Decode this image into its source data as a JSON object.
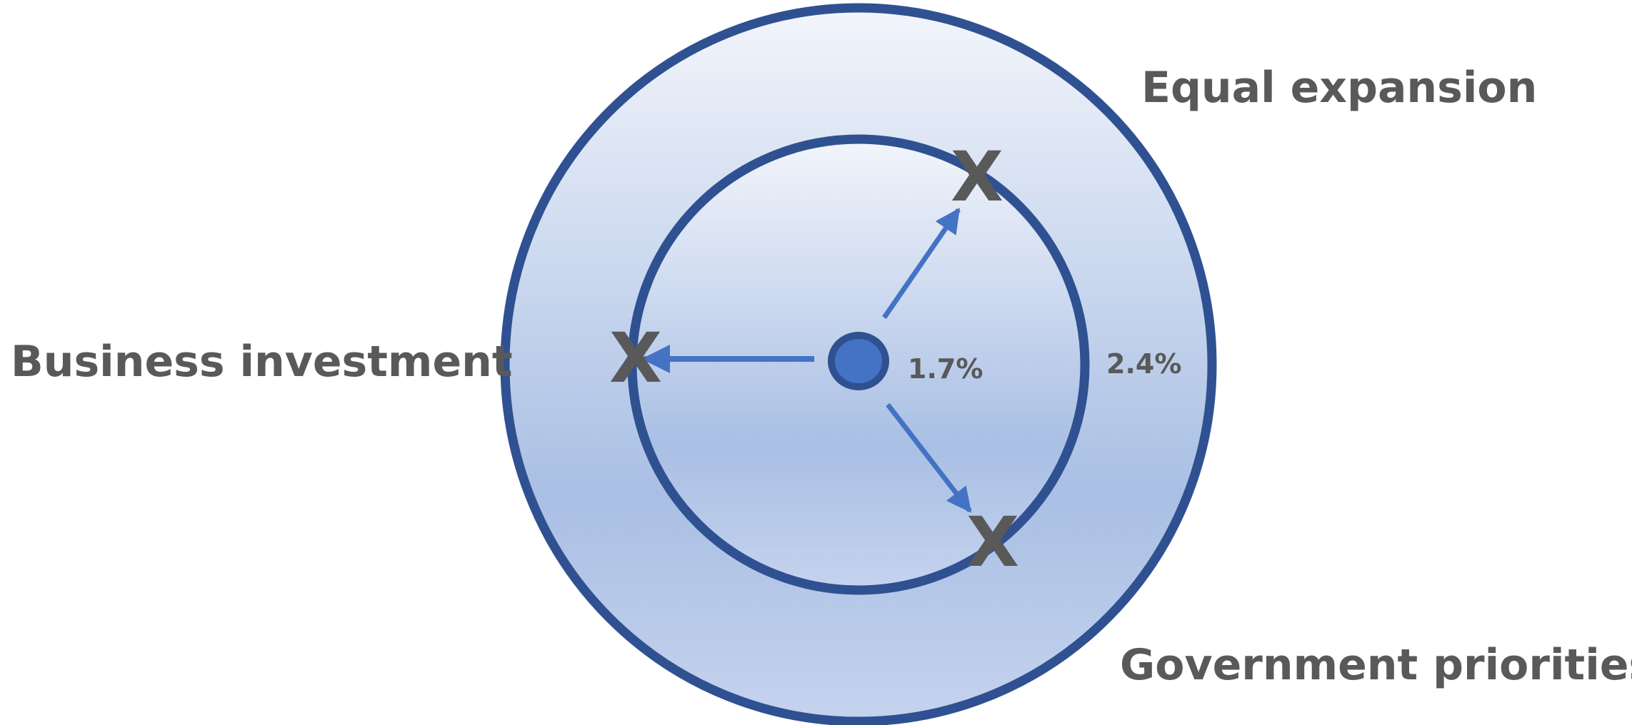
{
  "diagram": {
    "labels": {
      "equal_expansion": "Equal expansion",
      "business_investment": "Business investment",
      "government_priorities": "Government priorities"
    },
    "rates": {
      "inner": "1.7%",
      "outer": "2.4%"
    },
    "marker": "X"
  },
  "colors": {
    "circle_stroke": "#2f5191",
    "arrow": "#4472c4",
    "center_fill": "#4472c4",
    "text": "#595959",
    "gradient_top": "#f2f5fb",
    "gradient_mid": "#a9bfe4",
    "gradient_bottom": "#c5d3ee"
  }
}
